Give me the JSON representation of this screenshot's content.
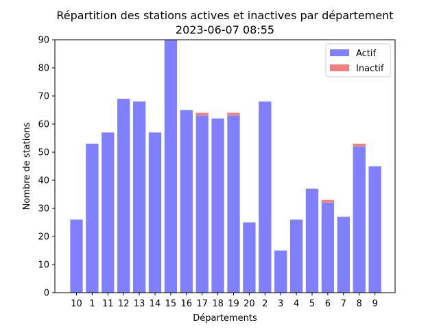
{
  "chart_data": {
    "type": "bar",
    "stacked": true,
    "title": "Répartition des stations actives et inactives par département",
    "subtitle": "2023-06-07 08:55",
    "xlabel": "Départements",
    "ylabel": "Nombre de stations",
    "ylim": [
      0,
      90
    ],
    "yticks": [
      0,
      10,
      20,
      30,
      40,
      50,
      60,
      70,
      80,
      90
    ],
    "grid": false,
    "legend_position": "top-right",
    "categories": [
      "10",
      "1",
      "11",
      "12",
      "13",
      "14",
      "15",
      "16",
      "17",
      "18",
      "19",
      "20",
      "2",
      "3",
      "4",
      "5",
      "6",
      "7",
      "8",
      "9"
    ],
    "series": [
      {
        "name": "Actif",
        "color": "#8080ff",
        "values": [
          26,
          53,
          57,
          69,
          68,
          57,
          90,
          65,
          63,
          62,
          63,
          25,
          68,
          15,
          26,
          37,
          32,
          27,
          52,
          45
        ]
      },
      {
        "name": "Inactif",
        "color": "#f08080",
        "values": [
          0,
          0,
          0,
          0,
          0,
          0,
          0,
          0,
          1,
          0,
          1,
          0,
          0,
          0,
          0,
          0,
          1,
          0,
          1,
          0
        ]
      }
    ]
  }
}
